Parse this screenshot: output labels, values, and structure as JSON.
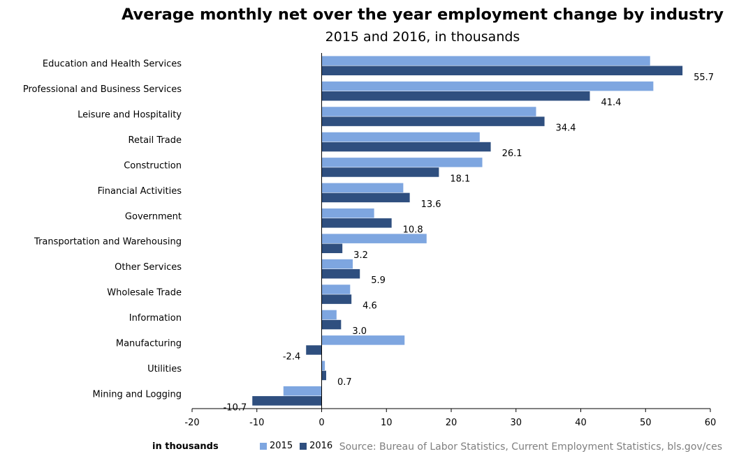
{
  "chart_data": {
    "type": "bar",
    "orientation": "horizontal",
    "title": "Average monthly net over the year employment change by industry",
    "subtitle": "2015 and 2016, in thousands",
    "xlabel": "in thousands",
    "xlim": [
      -20,
      60
    ],
    "xticks": [
      "-20",
      "-10",
      "0",
      "10",
      "20",
      "30",
      "40",
      "50",
      "60"
    ],
    "categories": [
      "Education and Health Services",
      "Professional and Business Services",
      "Leisure and Hospitality",
      "Retail Trade",
      "Construction",
      "Financial Activities",
      "Government",
      "Transportation and Warehousing",
      "Other Services",
      "Wholesale Trade",
      "Information",
      "Manufacturing",
      "Utilities",
      "Mining and Logging"
    ],
    "series": [
      {
        "name": "2015",
        "color": "#7ea6e0",
        "values": [
          50.7,
          51.2,
          33.1,
          24.4,
          24.8,
          12.6,
          8.1,
          16.2,
          4.8,
          4.4,
          2.3,
          12.8,
          0.5,
          -5.9
        ]
      },
      {
        "name": "2016",
        "color": "#2f4f7f",
        "values": [
          55.7,
          41.4,
          34.4,
          26.1,
          18.1,
          13.6,
          10.8,
          3.2,
          5.9,
          4.6,
          3.0,
          -2.4,
          0.7,
          -10.7
        ],
        "labels": [
          "55.7",
          "41.4",
          "34.4",
          "26.1",
          "18.1",
          "13.6",
          "10.8",
          "3.2",
          "5.9",
          "4.6",
          "3.0",
          "-2.4",
          "0.7",
          "-10.7"
        ]
      }
    ],
    "grid": false,
    "legend_position": "bottom",
    "source": "Source: Bureau of Labor Statistics, Current Employment Statistics, bls.gov/ces"
  }
}
